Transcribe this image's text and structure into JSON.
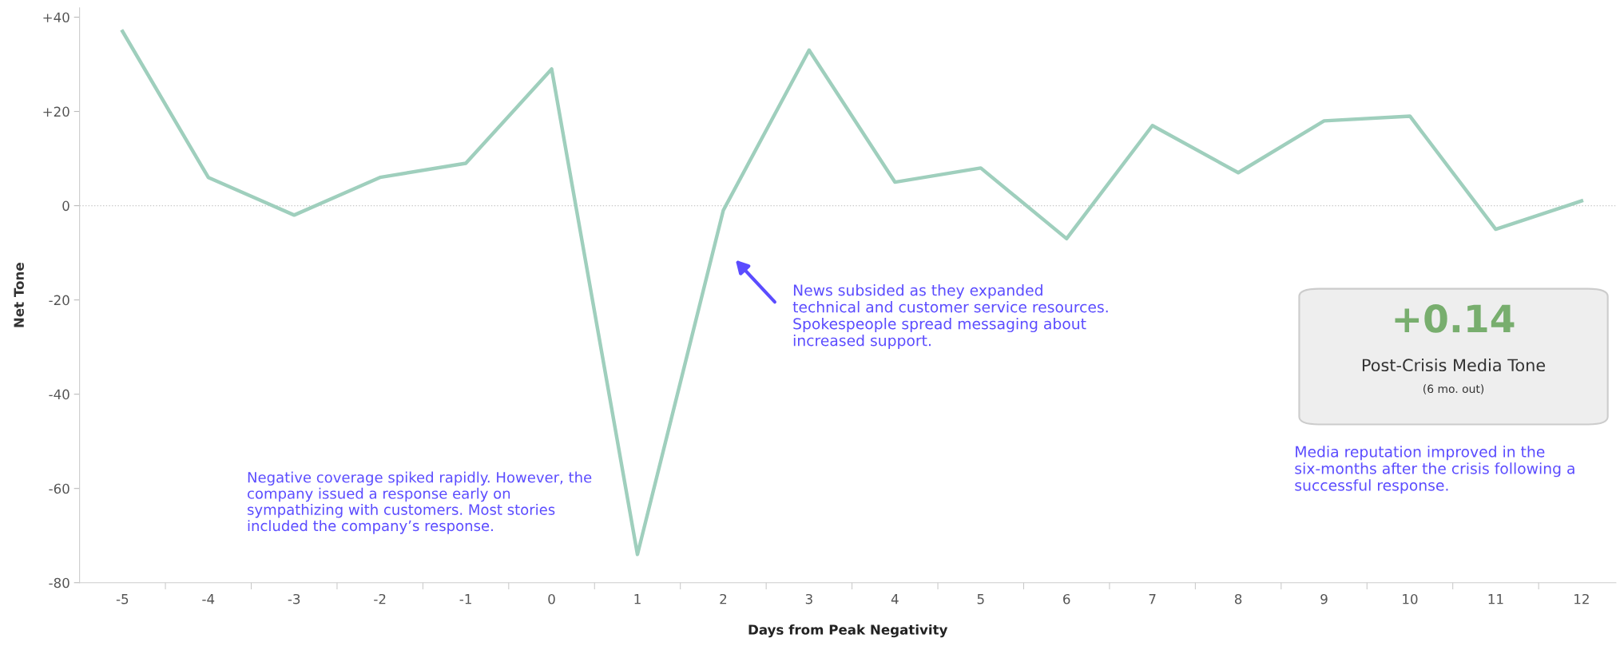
{
  "chart_data": {
    "type": "line",
    "xlabel": "Days from Peak Negativity",
    "ylabel": "Net Tone",
    "categories": [
      "-5",
      "-4",
      "-3",
      "-2",
      "-1",
      "0",
      "1",
      "2",
      "3",
      "4",
      "5",
      "6",
      "7",
      "8",
      "9",
      "10",
      "11",
      "12"
    ],
    "series": [
      {
        "values": [
          37,
          6,
          -2,
          6,
          9,
          29,
          -74,
          -1,
          33,
          5,
          8,
          -7,
          17,
          7,
          18,
          19,
          -5,
          1
        ],
        "color": "#9fcfbd"
      }
    ],
    "ylim": [
      -80,
      42
    ],
    "yticks": [
      {
        "value": 40,
        "label": "+40"
      },
      {
        "value": 20,
        "label": "+20"
      },
      0,
      {
        "value": -20,
        "label": "-20"
      },
      {
        "value": -40,
        "label": "-40"
      },
      {
        "value": -60,
        "label": "-60"
      },
      {
        "value": -80,
        "label": "-80"
      }
    ],
    "grid": false,
    "legend": false,
    "marker": "none",
    "line_style": "solid",
    "ref_lines": [
      {
        "axis": "y",
        "value": 0,
        "color": "#c8c8c8",
        "line_style": "dotted"
      }
    ],
    "annotations": [
      "Negative coverage spiked rapidly. However, the company issued a response early on sympathizing with customers. Most stories included the company’s response.",
      "News subsided as they expanded technical and customer service resources. Spokespeople spread messaging about increased support.",
      "+0.14",
      "Post-Crisis Media Tone",
      "(6 mo. out)",
      "Media reputation improved in the six-months after the crisis following a successful response."
    ]
  }
}
